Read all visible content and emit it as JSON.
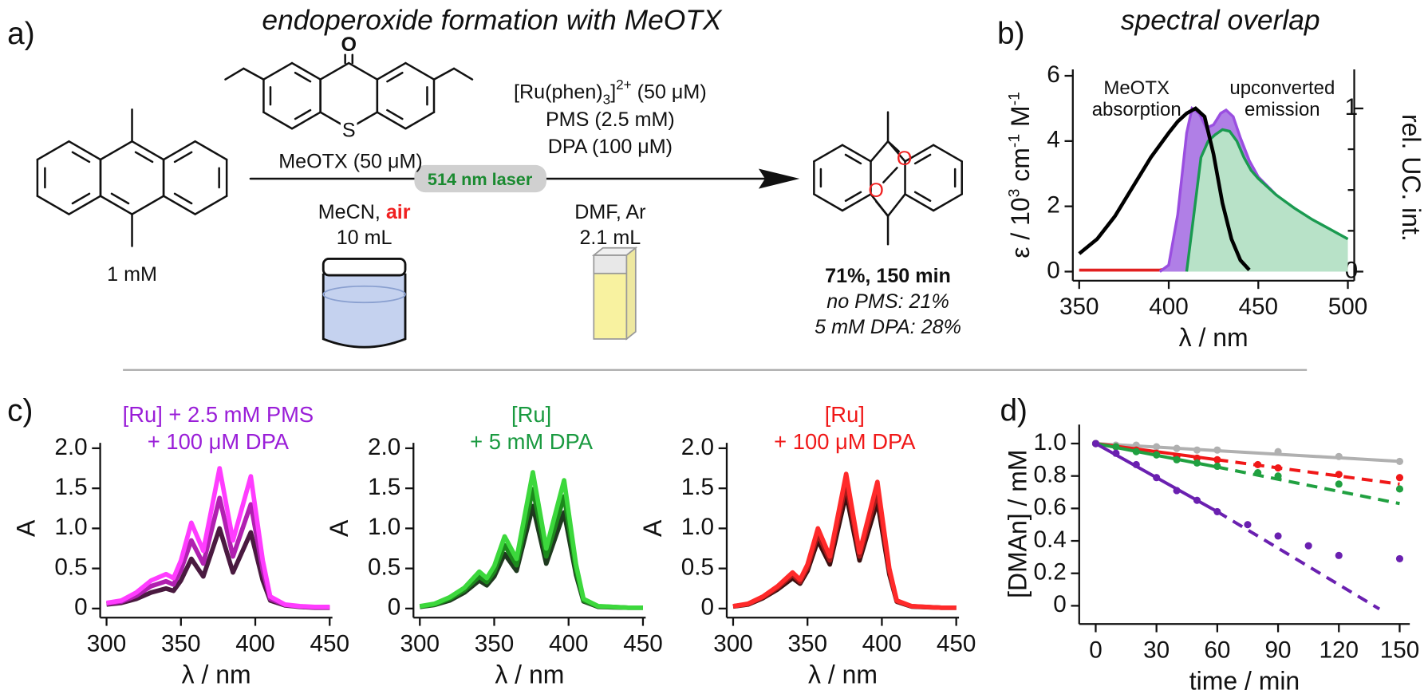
{
  "scheme": {
    "panel_labels": [
      "a)",
      "b)",
      "c)",
      "d)"
    ],
    "title": "endoperoxide formation with MeOTX",
    "reactant_label": "1 mM",
    "sensitizer_atoms": [
      "O",
      "S"
    ],
    "sensitizer_label": "MeOTX (50 μM)",
    "laser": "514 nm laser",
    "step1": [
      "MeCN, ",
      "air",
      "10 mL"
    ],
    "catalyst": [
      "[Ru(phen)",
      "3",
      "]",
      "2+",
      " (50 μM)"
    ],
    "step2_above": [
      "PMS (2.5 mM)",
      "DPA (100 μM)"
    ],
    "step2_below": [
      "DMF, Ar",
      "2.1 mL"
    ],
    "product_oxygen": [
      "O",
      "O"
    ],
    "result": [
      "71%, 150 min",
      "no PMS:  21%",
      "5 mM DPA: 28%"
    ]
  },
  "chart_data": [
    {
      "type": "area",
      "title": "spectral overlap",
      "annotations": [
        [
          "MeOTX",
          "absorption"
        ],
        [
          "upconverted",
          "emission"
        ]
      ],
      "ylabel": [
        "ε / 10",
        "3",
        " cm",
        "-1",
        " M",
        "-1"
      ],
      "y2label": "rel. UC. int.",
      "xlabel": "λ / nm",
      "xlim": [
        350,
        500
      ],
      "xticks": [
        350,
        400,
        450,
        500
      ],
      "ylim": [
        0,
        6
      ],
      "yticks": [
        0,
        2,
        4,
        6
      ],
      "y2lim": [
        0,
        1.2
      ],
      "y2ticks": [
        0,
        1
      ],
      "y2minor_ticks": [
        0.25,
        0.5,
        0.75
      ],
      "series": [
        {
          "color": "#e02020",
          "fill": "#f23a3a",
          "axis": "y2",
          "x": [
            350,
            395,
            400,
            405,
            410,
            415,
            420,
            425,
            430,
            435,
            440,
            450,
            460,
            470,
            480,
            490,
            500
          ],
          "values": [
            0.01,
            0.01,
            0.02,
            0.07,
            0.13,
            0.15,
            0.16,
            0.17,
            0.17,
            0.16,
            0.13,
            0.1,
            0.08,
            0.07,
            0.05,
            0.04,
            0.03
          ]
        },
        {
          "color": "#9a4ee0",
          "fill": "#b07fe6",
          "axis": "y2",
          "x": [
            395,
            400,
            405,
            410,
            413,
            417,
            421,
            425,
            429,
            432,
            436,
            440,
            445,
            450,
            460,
            470,
            475
          ],
          "values": [
            0,
            0.04,
            0.35,
            0.85,
            1.0,
            0.97,
            0.88,
            0.9,
            0.97,
            0.99,
            0.95,
            0.82,
            0.68,
            0.58,
            0.47,
            0.38,
            0.34
          ]
        },
        {
          "color": "#1a9a50",
          "fill": "#b8e2c8",
          "axis": "y2",
          "x": [
            410,
            414,
            418,
            422,
            426,
            430,
            434,
            438,
            442,
            446,
            450,
            460,
            470,
            480,
            490,
            500
          ],
          "values": [
            0,
            0.35,
            0.7,
            0.8,
            0.84,
            0.87,
            0.86,
            0.8,
            0.7,
            0.62,
            0.57,
            0.47,
            0.39,
            0.32,
            0.26,
            0.2
          ]
        },
        {
          "color": "#000000",
          "axis": "y",
          "x": [
            350,
            360,
            370,
            380,
            390,
            400,
            405,
            410,
            415,
            420,
            425,
            430,
            435,
            440,
            445
          ],
          "values": [
            0.55,
            1.0,
            1.7,
            2.6,
            3.5,
            4.25,
            4.6,
            4.85,
            5.0,
            4.75,
            3.6,
            2.1,
            1.0,
            0.35,
            0.05
          ]
        }
      ]
    },
    {
      "type": "line",
      "title": [
        "[Ru] + 2.5 mM PMS",
        "+ 100 μM DPA"
      ],
      "title_color": "#9a1ed8",
      "ylabel": "A",
      "xlabel": "λ / nm",
      "xlim": [
        300,
        450
      ],
      "xticks": [
        300,
        350,
        400,
        450
      ],
      "ylim": [
        0,
        2
      ],
      "yticks": [
        0,
        0.5,
        {
          "value": 1,
          "label": "1.0"
        },
        1.5,
        {
          "value": 2,
          "label": "2.0"
        }
      ],
      "x": [
        300,
        310,
        320,
        330,
        340,
        345,
        350,
        357,
        365,
        376,
        385,
        397,
        405,
        410,
        420,
        430,
        440,
        450
      ],
      "series": [
        {
          "color": "#4a1a40",
          "values": [
            0.05,
            0.07,
            0.12,
            0.2,
            0.25,
            0.22,
            0.35,
            0.62,
            0.4,
            1.0,
            0.45,
            0.95,
            0.35,
            0.1,
            0.04,
            0.02,
            0.01,
            0.01
          ]
        },
        {
          "color": "#b020b0",
          "values": [
            0.06,
            0.085,
            0.16,
            0.28,
            0.34,
            0.3,
            0.48,
            0.85,
            0.56,
            1.38,
            0.65,
            1.3,
            0.48,
            0.12,
            0.045,
            0.025,
            0.015,
            0.015
          ]
        },
        {
          "color": "#ff3cff",
          "values": [
            0.07,
            0.1,
            0.2,
            0.35,
            0.43,
            0.38,
            0.6,
            1.07,
            0.72,
            1.75,
            0.85,
            1.65,
            0.6,
            0.15,
            0.05,
            0.03,
            0.02,
            0.02
          ]
        }
      ]
    },
    {
      "type": "line",
      "title": [
        "[Ru]",
        "+ 5 mM DPA"
      ],
      "title_color": "#1a9a40",
      "ylabel": "A",
      "xlabel": "λ / nm",
      "xlim": [
        300,
        450
      ],
      "xticks": [
        300,
        350,
        400,
        450
      ],
      "ylim": [
        0,
        2
      ],
      "yticks": [
        0,
        0.5,
        {
          "value": 1,
          "label": "1.0"
        },
        1.5,
        {
          "value": 2,
          "label": "2.0"
        }
      ],
      "x": [
        300,
        310,
        320,
        330,
        340,
        345,
        350,
        357,
        365,
        376,
        385,
        397,
        405,
        410,
        420,
        430,
        440,
        450
      ],
      "series": [
        {
          "color": "#1f3a1f",
          "values": [
            0.02,
            0.045,
            0.1,
            0.2,
            0.35,
            0.29,
            0.4,
            0.68,
            0.47,
            1.28,
            0.56,
            1.2,
            0.42,
            0.09,
            0.02,
            0.015,
            0.01,
            0.01
          ]
        },
        {
          "color": "#1c8a1c",
          "values": [
            0.025,
            0.05,
            0.12,
            0.23,
            0.4,
            0.33,
            0.46,
            0.79,
            0.54,
            1.49,
            0.65,
            1.4,
            0.48,
            0.1,
            0.025,
            0.02,
            0.01,
            0.01
          ]
        },
        {
          "color": "#3cd83c",
          "values": [
            0.03,
            0.06,
            0.14,
            0.26,
            0.46,
            0.38,
            0.53,
            0.9,
            0.62,
            1.7,
            0.75,
            1.6,
            0.55,
            0.12,
            0.03,
            0.02,
            0.01,
            0.01
          ]
        }
      ]
    },
    {
      "type": "line",
      "title": [
        "[Ru]",
        "+ 100 μM DPA"
      ],
      "title_color": "#f01818",
      "ylabel": "A",
      "xlabel": "λ / nm",
      "xlim": [
        300,
        450
      ],
      "xticks": [
        300,
        350,
        400,
        450
      ],
      "ylim": [
        0,
        2
      ],
      "yticks": [
        0,
        0.5,
        {
          "value": 1,
          "label": "1.0"
        },
        1.5,
        {
          "value": 2,
          "label": "2.0"
        }
      ],
      "x": [
        300,
        310,
        320,
        330,
        340,
        345,
        350,
        357,
        365,
        376,
        385,
        397,
        405,
        410,
        420,
        430,
        440,
        450
      ],
      "series": [
        {
          "color": "#3a1010",
          "values": [
            0.025,
            0.05,
            0.13,
            0.24,
            0.38,
            0.31,
            0.47,
            0.85,
            0.55,
            1.43,
            0.6,
            1.34,
            0.43,
            0.085,
            0.025,
            0.017,
            0.01,
            0.01
          ]
        },
        {
          "color": "#a81a1a",
          "values": [
            0.028,
            0.055,
            0.14,
            0.26,
            0.42,
            0.33,
            0.51,
            0.93,
            0.6,
            1.56,
            0.65,
            1.46,
            0.46,
            0.09,
            0.028,
            0.018,
            0.01,
            0.01
          ]
        },
        {
          "color": "#ff2a2a",
          "values": [
            0.03,
            0.06,
            0.15,
            0.28,
            0.45,
            0.36,
            0.55,
            1.0,
            0.65,
            1.68,
            0.7,
            1.58,
            0.5,
            0.1,
            0.03,
            0.02,
            0.01,
            0.01
          ]
        }
      ]
    },
    {
      "type": "scatter",
      "ylabel": "[DMAn] / mM",
      "xlabel": "time / min",
      "xlim": [
        -5,
        155
      ],
      "xticks": [
        0,
        30,
        60,
        90,
        120,
        150
      ],
      "ylim": [
        -0.09,
        1.1
      ],
      "yticks": [
        0,
        0.2,
        0.4,
        0.6,
        0.8,
        {
          "value": 1,
          "label": "1.0"
        }
      ],
      "series": [
        {
          "color": "#b0b0b0",
          "x": [
            0,
            10,
            20,
            30,
            40,
            50,
            60,
            90,
            120,
            150
          ],
          "values": [
            1,
            0.99,
            0.99,
            0.98,
            0.97,
            0.96,
            0.96,
            0.95,
            0.92,
            0.89
          ],
          "fit": {
            "x": [
              0,
              150
            ],
            "values": [
              1,
              0.89
            ],
            "styles": [
              "solid"
            ]
          }
        },
        {
          "color": "#f01818",
          "x": [
            0,
            10,
            20,
            30,
            40,
            50,
            60,
            80,
            90,
            120,
            150
          ],
          "values": [
            1,
            0.98,
            0.96,
            0.94,
            0.92,
            0.91,
            0.9,
            0.87,
            0.85,
            0.81,
            0.79
          ],
          "fit": {
            "x": [
              0,
              60,
              150
            ],
            "values": [
              1,
              0.9,
              0.75
            ],
            "styles": [
              "solid",
              "dashed"
            ]
          }
        },
        {
          "color": "#20a040",
          "x": [
            0,
            10,
            20,
            30,
            40,
            50,
            60,
            80,
            90,
            120,
            150
          ],
          "values": [
            1,
            0.98,
            0.95,
            0.93,
            0.9,
            0.88,
            0.86,
            0.82,
            0.8,
            0.75,
            0.72
          ],
          "fit": {
            "x": [
              0,
              60,
              150
            ],
            "values": [
              1,
              0.855,
              0.63
            ],
            "styles": [
              "solid",
              "dashed"
            ]
          }
        },
        {
          "color": "#6a20b0",
          "x": [
            0,
            10,
            20,
            30,
            40,
            50,
            60,
            75,
            90,
            105,
            120,
            150
          ],
          "values": [
            1,
            0.94,
            0.87,
            0.79,
            0.71,
            0.65,
            0.58,
            0.5,
            0.43,
            0.37,
            0.31,
            0.29
          ],
          "fit": {
            "x": [
              0,
              60,
              140
            ],
            "values": [
              1,
              0.58,
              -0.02
            ],
            "styles": [
              "solid",
              "dashed"
            ]
          }
        }
      ]
    }
  ]
}
